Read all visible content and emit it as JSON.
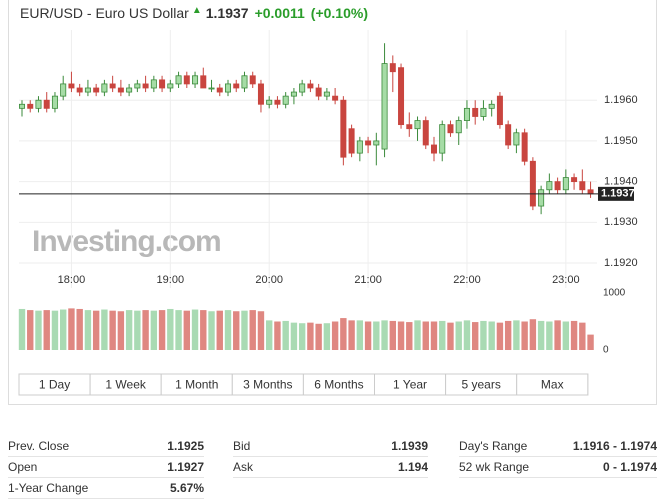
{
  "header": {
    "symbol": "EUR/USD - Euro US Dollar",
    "last": "1.1937",
    "change": "+0.0011",
    "change_pct": "(+0.10%)"
  },
  "watermark": "Investing.com",
  "range_buttons": [
    "1 Day",
    "1 Week",
    "1 Month",
    "3 Months",
    "6 Months",
    "1 Year",
    "5 years",
    "Max"
  ],
  "chart_data": [
    {
      "type": "candlestick",
      "categories": [
        null,
        null,
        null,
        null,
        null,
        null,
        "18:00",
        null,
        null,
        null,
        null,
        null,
        null,
        null,
        null,
        null,
        null,
        null,
        "19:00",
        null,
        null,
        null,
        null,
        null,
        null,
        null,
        null,
        null,
        null,
        null,
        "20:00",
        null,
        null,
        null,
        null,
        null,
        null,
        null,
        null,
        null,
        null,
        null,
        "21:00",
        null,
        null,
        null,
        null,
        null,
        null,
        null,
        null,
        null,
        null,
        null,
        "22:00",
        null,
        null,
        null,
        null,
        null,
        null,
        null,
        null,
        null,
        null,
        null,
        "23:00",
        null,
        null,
        null
      ],
      "open": [
        1.1958,
        1.1959,
        1.1958,
        1.196,
        1.1958,
        1.1961,
        1.1964,
        1.1963,
        1.1962,
        1.1963,
        1.1962,
        1.1964,
        1.1963,
        1.1962,
        1.1963,
        1.1964,
        1.1963,
        1.1965,
        1.1963,
        1.1964,
        1.1966,
        1.1964,
        1.1966,
        1.1963,
        1.1963,
        1.1962,
        1.1964,
        1.1963,
        1.1966,
        1.1964,
        1.1959,
        1.196,
        1.1959,
        1.1961,
        1.1962,
        1.1964,
        1.1963,
        1.1961,
        1.1961,
        1.196,
        1.1953,
        1.1947,
        1.195,
        1.1949,
        1.1948,
        1.1969,
        1.1968,
        1.1954,
        1.1953,
        1.1955,
        1.1949,
        1.1947,
        1.1954,
        1.1952,
        1.1955,
        1.1958,
        1.1956,
        1.1958,
        1.1961,
        1.1954,
        1.1949,
        1.1952,
        1.1945,
        1.1934,
        1.1938,
        1.194,
        1.1938,
        1.1941,
        1.194,
        1.1938
      ],
      "high": [
        1.196,
        1.196,
        1.1961,
        1.1962,
        1.1962,
        1.1966,
        1.1967,
        1.1964,
        1.1965,
        1.1964,
        1.1965,
        1.1966,
        1.1965,
        1.1964,
        1.1965,
        1.1966,
        1.1966,
        1.1966,
        1.1965,
        1.1967,
        1.1967,
        1.1967,
        1.1968,
        1.1965,
        1.1964,
        1.1965,
        1.1965,
        1.1967,
        1.1967,
        1.1965,
        1.1961,
        1.1961,
        1.1962,
        1.1963,
        1.1965,
        1.1965,
        1.1964,
        1.1963,
        1.1963,
        1.1961,
        1.1954,
        1.1951,
        1.1951,
        1.1952,
        1.1974,
        1.1971,
        1.1969,
        1.1957,
        1.1956,
        1.1956,
        1.1951,
        1.1955,
        1.1955,
        1.1956,
        1.196,
        1.196,
        1.196,
        1.196,
        1.1962,
        1.1955,
        1.1953,
        1.1953,
        1.1946,
        1.1939,
        1.1942,
        1.1941,
        1.1943,
        1.1942,
        1.1943,
        1.194
      ],
      "low": [
        1.1956,
        1.1957,
        1.1957,
        1.1957,
        1.1957,
        1.196,
        1.1962,
        1.1961,
        1.1961,
        1.1961,
        1.1961,
        1.1962,
        1.1961,
        1.1961,
        1.1962,
        1.1962,
        1.1962,
        1.1962,
        1.1962,
        1.1963,
        1.1963,
        1.1963,
        1.1963,
        1.1962,
        1.1961,
        1.1961,
        1.1962,
        1.1962,
        1.1963,
        1.1957,
        1.1958,
        1.1958,
        1.1958,
        1.1959,
        1.1961,
        1.1962,
        1.196,
        1.196,
        1.1959,
        1.1944,
        1.1946,
        1.1945,
        1.1947,
        1.1944,
        1.1946,
        1.1962,
        1.1953,
        1.1951,
        1.195,
        1.1948,
        1.1945,
        1.1945,
        1.1951,
        1.1949,
        1.1953,
        1.1954,
        1.1955,
        1.1956,
        1.1953,
        1.1948,
        1.1947,
        1.1944,
        1.1933,
        1.1932,
        1.1937,
        1.1937,
        1.1937,
        1.1938,
        1.1937,
        1.1936
      ],
      "close": [
        1.1959,
        1.1958,
        1.196,
        1.1958,
        1.1961,
        1.1964,
        1.1963,
        1.1962,
        1.1963,
        1.1962,
        1.1964,
        1.1963,
        1.1962,
        1.1963,
        1.1964,
        1.1963,
        1.1965,
        1.1963,
        1.1964,
        1.1966,
        1.1964,
        1.1966,
        1.1963,
        1.1963,
        1.1962,
        1.1964,
        1.1963,
        1.1966,
        1.1964,
        1.1959,
        1.196,
        1.1959,
        1.1961,
        1.1962,
        1.1964,
        1.1963,
        1.1961,
        1.1962,
        1.196,
        1.1946,
        1.1947,
        1.195,
        1.1949,
        1.195,
        1.1969,
        1.1967,
        1.1954,
        1.1953,
        1.1955,
        1.1949,
        1.1947,
        1.1954,
        1.1952,
        1.1955,
        1.1958,
        1.1956,
        1.1958,
        1.1959,
        1.1954,
        1.1949,
        1.1952,
        1.1945,
        1.1934,
        1.1938,
        1.194,
        1.1938,
        1.1941,
        1.194,
        1.1938,
        1.1937
      ],
      "up_color": "#a6dca6",
      "up_stroke": "#3a8a3a",
      "down_color": "#c9453f",
      "ylim": [
        1.1915,
        1.1977
      ],
      "yticks": [
        {
          "value": 1.192,
          "label": "1.1920"
        },
        {
          "value": 1.193,
          "label": "1.1930"
        },
        {
          "value": 1.194,
          "label": "1.1940"
        },
        {
          "value": 1.195,
          "label": "1.1950"
        },
        {
          "value": 1.196,
          "label": "1.1960"
        }
      ],
      "last_price": {
        "value": 1.1937,
        "label": "1.1937"
      },
      "grid": true
    },
    {
      "type": "bar",
      "values": [
        720,
        700,
        690,
        700,
        690,
        710,
        730,
        720,
        700,
        690,
        710,
        690,
        680,
        700,
        690,
        700,
        690,
        700,
        720,
        700,
        690,
        710,
        700,
        680,
        690,
        700,
        680,
        690,
        700,
        680,
        520,
        500,
        510,
        480,
        470,
        480,
        460,
        470,
        500,
        560,
        520,
        520,
        500,
        500,
        520,
        510,
        500,
        490,
        520,
        500,
        500,
        510,
        480,
        500,
        520,
        490,
        510,
        500,
        480,
        510,
        520,
        500,
        540,
        510,
        500,
        520,
        500,
        510,
        480,
        270
      ],
      "up_color": "#a9dab3",
      "down_color": "#df8781",
      "ylim": [
        0,
        1000
      ],
      "yticks": [
        0,
        1000
      ]
    }
  ],
  "stats": [
    [
      [
        "Prev. Close",
        "1.1925"
      ],
      [
        "Bid",
        "1.1939"
      ],
      [
        "Day's Range",
        "1.1916 - 1.1974"
      ]
    ],
    [
      [
        "Open",
        "1.1927"
      ],
      [
        "Ask",
        "1.194"
      ],
      [
        "52 wk Range",
        "0 - 1.1974"
      ]
    ],
    [
      [
        "1-Year Change",
        "5.67%"
      ]
    ]
  ]
}
